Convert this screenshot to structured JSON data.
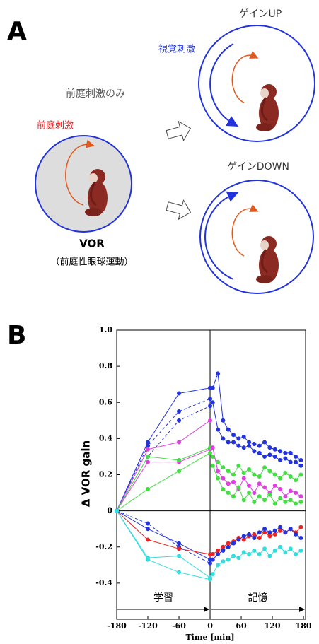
{
  "panel_a": {
    "label": "A",
    "caption_left": "前庭刺激のみ",
    "stimulus_left": "前庭刺激",
    "vor": "VOR",
    "vor_note": "（前庭性眼球運動）",
    "gain_up": "ゲインUP",
    "visual": "視覚刺激",
    "gain_down": "ゲインDOWN"
  },
  "chart_data": {
    "type": "line",
    "panel_label": "B",
    "ylabel": "Δ VOR gain",
    "xlabel": "Time [min]",
    "phase_labels": [
      "学習",
      "記憶"
    ],
    "xlim": [
      -180,
      184
    ],
    "ylim": [
      -0.6,
      1.0
    ],
    "xticks": [
      -180,
      -120,
      -60,
      0,
      60,
      120,
      180
    ],
    "yticks": [
      {
        "value": 1.0,
        "label": "1.0"
      },
      0.8,
      0.6,
      0.4,
      0.2,
      0,
      -0.2,
      -0.4
    ],
    "series": [
      {
        "color": "#2233dd",
        "dashed": false,
        "x": [
          -180,
          -120,
          -60,
          0
        ],
        "values": [
          0,
          0.38,
          0.65,
          0.68
        ]
      },
      {
        "color": "#2233dd",
        "dashed": true,
        "x": [
          -180,
          -120,
          -60,
          0
        ],
        "values": [
          0,
          0.36,
          0.55,
          0.62
        ]
      },
      {
        "color": "#2233dd",
        "dashed": true,
        "x": [
          -180,
          -120,
          -60,
          0
        ],
        "values": [
          0,
          0.3,
          0.5,
          0.58
        ]
      },
      {
        "color": "#e040e0",
        "dashed": false,
        "x": [
          -180,
          -120,
          -60,
          0
        ],
        "values": [
          0,
          0.34,
          0.38,
          0.5
        ]
      },
      {
        "color": "#e040e0",
        "dashed": false,
        "x": [
          -180,
          -120,
          -60,
          0
        ],
        "values": [
          0,
          0.27,
          0.27,
          0.34
        ]
      },
      {
        "color": "#44dd44",
        "dashed": false,
        "x": [
          -180,
          -120,
          -60,
          0
        ],
        "values": [
          0,
          0.3,
          0.28,
          0.35
        ]
      },
      {
        "color": "#44dd44",
        "dashed": false,
        "x": [
          -180,
          -120,
          -60,
          0
        ],
        "values": [
          0,
          0.12,
          0.22,
          0.32
        ]
      },
      {
        "color": "#2233dd",
        "dashed": false,
        "x": [
          -180,
          -120,
          -60,
          0
        ],
        "values": [
          0,
          -0.1,
          -0.18,
          -0.27
        ]
      },
      {
        "color": "#2233dd",
        "dashed": true,
        "x": [
          -180,
          -120,
          -60,
          0
        ],
        "values": [
          0,
          -0.07,
          -0.2,
          -0.29
        ]
      },
      {
        "color": "#ee2222",
        "dashed": false,
        "x": [
          -180,
          -120,
          -60,
          0
        ],
        "values": [
          0,
          -0.16,
          -0.21,
          -0.24
        ]
      },
      {
        "color": "#33dddd",
        "dashed": false,
        "x": [
          -180,
          -120,
          -60,
          0
        ],
        "values": [
          0,
          -0.26,
          -0.25,
          -0.37
        ]
      },
      {
        "color": "#33dddd",
        "dashed": false,
        "x": [
          -180,
          -120,
          -60,
          0
        ],
        "values": [
          0,
          -0.27,
          -0.34,
          -0.38
        ]
      },
      {
        "color": "#2233dd",
        "dashed": false,
        "x": [
          5,
          15,
          25,
          35,
          45,
          55,
          65,
          75,
          85,
          95,
          105,
          115,
          125,
          135,
          145,
          155,
          165,
          175
        ],
        "values": [
          0.68,
          0.76,
          0.5,
          0.45,
          0.42,
          0.4,
          0.41,
          0.38,
          0.37,
          0.36,
          0.38,
          0.35,
          0.34,
          0.33,
          0.32,
          0.32,
          0.3,
          0.28
        ]
      },
      {
        "color": "#2233dd",
        "dashed": false,
        "x": [
          5,
          15,
          25,
          35,
          45,
          55,
          65,
          75,
          85,
          95,
          105,
          115,
          125,
          135,
          145,
          155,
          165,
          175
        ],
        "values": [
          0.6,
          0.45,
          0.4,
          0.38,
          0.38,
          0.36,
          0.35,
          0.36,
          0.33,
          0.32,
          0.3,
          0.31,
          0.3,
          0.28,
          0.29,
          0.27,
          0.27,
          0.25
        ]
      },
      {
        "color": "#44dd44",
        "dashed": false,
        "x": [
          5,
          15,
          25,
          35,
          45,
          55,
          65,
          75,
          85,
          95,
          105,
          115,
          125,
          135,
          145,
          155,
          165,
          175
        ],
        "values": [
          0.3,
          0.27,
          0.24,
          0.22,
          0.2,
          0.25,
          0.21,
          0.23,
          0.2,
          0.19,
          0.24,
          0.22,
          0.2,
          0.18,
          0.21,
          0.19,
          0.17,
          0.2
        ]
      },
      {
        "color": "#e040e0",
        "dashed": false,
        "x": [
          5,
          15,
          25,
          35,
          45,
          55,
          65,
          75,
          85,
          95,
          105,
          115,
          125,
          135,
          145,
          155,
          165,
          175
        ],
        "values": [
          0.35,
          0.22,
          0.18,
          0.15,
          0.16,
          0.12,
          0.18,
          0.14,
          0.1,
          0.15,
          0.13,
          0.1,
          0.14,
          0.12,
          0.08,
          0.11,
          0.1,
          0.08
        ]
      },
      {
        "color": "#44dd44",
        "dashed": false,
        "x": [
          5,
          15,
          25,
          35,
          45,
          55,
          65,
          75,
          85,
          95,
          105,
          115,
          125,
          135,
          145,
          155,
          165,
          175
        ],
        "values": [
          0.25,
          0.18,
          0.12,
          0.1,
          0.08,
          0.13,
          0.06,
          0.1,
          0.05,
          0.08,
          0.06,
          0.09,
          0.04,
          0.07,
          0.05,
          0.06,
          0.04,
          0.05
        ]
      },
      {
        "color": "#ee2222",
        "dashed": false,
        "x": [
          5,
          15,
          25,
          35,
          45,
          55,
          65,
          75,
          85,
          95,
          105,
          115,
          125,
          135,
          145,
          155,
          165,
          175
        ],
        "values": [
          -0.24,
          -0.22,
          -0.2,
          -0.18,
          -0.17,
          -0.15,
          -0.16,
          -0.14,
          -0.13,
          -0.15,
          -0.12,
          -0.14,
          -0.13,
          -0.11,
          -0.12,
          -0.1,
          -0.12,
          -0.09
        ]
      },
      {
        "color": "#2233dd",
        "dashed": false,
        "x": [
          5,
          15,
          25,
          35,
          45,
          55,
          65,
          75,
          85,
          95,
          105,
          115,
          125,
          135,
          145,
          155,
          165,
          175
        ],
        "values": [
          -0.27,
          -0.24,
          -0.22,
          -0.2,
          -0.18,
          -0.16,
          -0.14,
          -0.13,
          -0.15,
          -0.12,
          -0.1,
          -0.12,
          -0.11,
          -0.09,
          -0.12,
          -0.1,
          -0.13,
          -0.15
        ]
      },
      {
        "color": "#33dddd",
        "dashed": false,
        "x": [
          5,
          15,
          25,
          35,
          45,
          55,
          65,
          75,
          85,
          95,
          105,
          115,
          125,
          135,
          145,
          155,
          165,
          175
        ],
        "values": [
          -0.35,
          -0.3,
          -0.28,
          -0.27,
          -0.25,
          -0.26,
          -0.23,
          -0.24,
          -0.22,
          -0.24,
          -0.21,
          -0.25,
          -0.22,
          -0.2,
          -0.23,
          -0.21,
          -0.24,
          -0.22
        ]
      }
    ]
  }
}
